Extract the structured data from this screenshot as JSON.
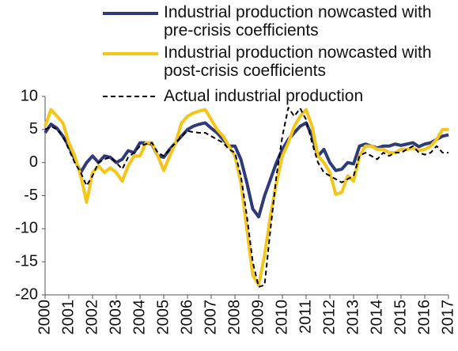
{
  "chart_data": {
    "type": "line",
    "x": [
      2000,
      2000.25,
      2000.5,
      2000.75,
      2001,
      2001.25,
      2001.5,
      2001.75,
      2002,
      2002.25,
      2002.5,
      2002.75,
      2003,
      2003.25,
      2003.5,
      2003.75,
      2004,
      2004.25,
      2004.5,
      2004.75,
      2005,
      2005.25,
      2005.5,
      2005.75,
      2006,
      2006.25,
      2006.5,
      2006.75,
      2007,
      2007.25,
      2007.5,
      2007.75,
      2008,
      2008.25,
      2008.5,
      2008.75,
      2009,
      2009.25,
      2009.5,
      2009.75,
      2010,
      2010.25,
      2010.5,
      2010.75,
      2011,
      2011.25,
      2011.5,
      2011.75,
      2012,
      2012.25,
      2012.5,
      2012.75,
      2013,
      2013.25,
      2013.5,
      2013.75,
      2014,
      2014.25,
      2014.5,
      2014.75,
      2015,
      2015.25,
      2015.5,
      2015.75,
      2016,
      2016.25,
      2016.5,
      2016.75,
      2017
    ],
    "series": [
      {
        "name": "Industrial production nowcasted with pre-crisis coefficients",
        "color": "#2e3a7a",
        "style": "solid",
        "values": [
          4.5,
          5.8,
          5.2,
          4.0,
          2.5,
          0.5,
          -1.5,
          0.0,
          1.0,
          0.0,
          1.0,
          0.8,
          0.0,
          0.5,
          1.8,
          1.5,
          3.0,
          3.0,
          2.8,
          1.0,
          0.8,
          2.0,
          3.0,
          4.0,
          5.0,
          5.5,
          5.8,
          6.0,
          5.2,
          4.5,
          3.5,
          2.5,
          2.5,
          0.5,
          -3.0,
          -7.0,
          -8.2,
          -5.0,
          -2.5,
          0.0,
          2.0,
          3.5,
          4.5,
          5.5,
          6.0,
          4.0,
          1.0,
          2.0,
          0.0,
          -1.2,
          -1.0,
          0.0,
          -0.2,
          2.5,
          2.8,
          2.5,
          2.2,
          2.5,
          2.5,
          2.8,
          2.6,
          2.8,
          3.0,
          2.4,
          2.8,
          3.0,
          3.5,
          4.0,
          4.2
        ]
      },
      {
        "name": "Industrial production nowcasted with post-crisis coefficients",
        "color": "#f5c518",
        "style": "solid",
        "values": [
          5.5,
          8.0,
          7.0,
          6.0,
          3.0,
          1.0,
          -2.0,
          -6.0,
          -1.5,
          -0.5,
          -1.5,
          -0.8,
          -1.5,
          -2.8,
          -0.5,
          1.0,
          1.0,
          3.0,
          3.0,
          1.0,
          -1.2,
          1.0,
          3.0,
          6.0,
          7.0,
          7.5,
          7.8,
          8.0,
          6.5,
          5.0,
          4.0,
          2.5,
          1.0,
          -3.0,
          -10.0,
          -17.0,
          -18.5,
          -14.0,
          -8.0,
          -3.0,
          1.0,
          3.0,
          5.5,
          7.0,
          8.0,
          5.5,
          1.0,
          0.0,
          -1.5,
          -4.8,
          -4.5,
          -2.0,
          -2.8,
          1.0,
          2.5,
          2.5,
          2.0,
          2.0,
          1.5,
          1.5,
          2.0,
          2.0,
          2.2,
          1.8,
          2.0,
          2.5,
          3.5,
          5.0,
          5.0
        ]
      },
      {
        "name": "Actual industrial production",
        "color": "#000000",
        "style": "dashed",
        "values": [
          5.0,
          5.5,
          5.0,
          4.0,
          2.0,
          0.0,
          -1.5,
          -3.5,
          -2.0,
          0.0,
          0.5,
          0.8,
          0.0,
          -1.0,
          0.8,
          1.5,
          2.5,
          2.8,
          3.0,
          1.5,
          1.0,
          2.0,
          3.0,
          4.0,
          4.8,
          4.6,
          4.5,
          4.5,
          4.0,
          3.5,
          3.0,
          2.0,
          1.5,
          -2.0,
          -8.0,
          -15.0,
          -18.8,
          -18.5,
          -10.0,
          -2.0,
          4.0,
          8.3,
          7.0,
          8.2,
          6.5,
          3.0,
          0.0,
          -1.5,
          -2.0,
          -2.5,
          -3.0,
          -2.5,
          -2.0,
          1.0,
          1.5,
          1.0,
          0.5,
          1.5,
          1.0,
          1.5,
          1.5,
          2.0,
          2.5,
          1.5,
          1.2,
          1.5,
          2.5,
          1.5,
          1.5
        ]
      }
    ],
    "xlim": [
      2000,
      2017
    ],
    "xticks": [
      2000,
      2001,
      2002,
      2003,
      2004,
      2005,
      2006,
      2007,
      2008,
      2009,
      2010,
      2011,
      2012,
      2013,
      2014,
      2015,
      2016,
      2017
    ],
    "ylim": [
      -20,
      10
    ],
    "yticks": [
      -20,
      -15,
      -10,
      -5,
      0,
      5,
      10
    ],
    "grid": false
  }
}
